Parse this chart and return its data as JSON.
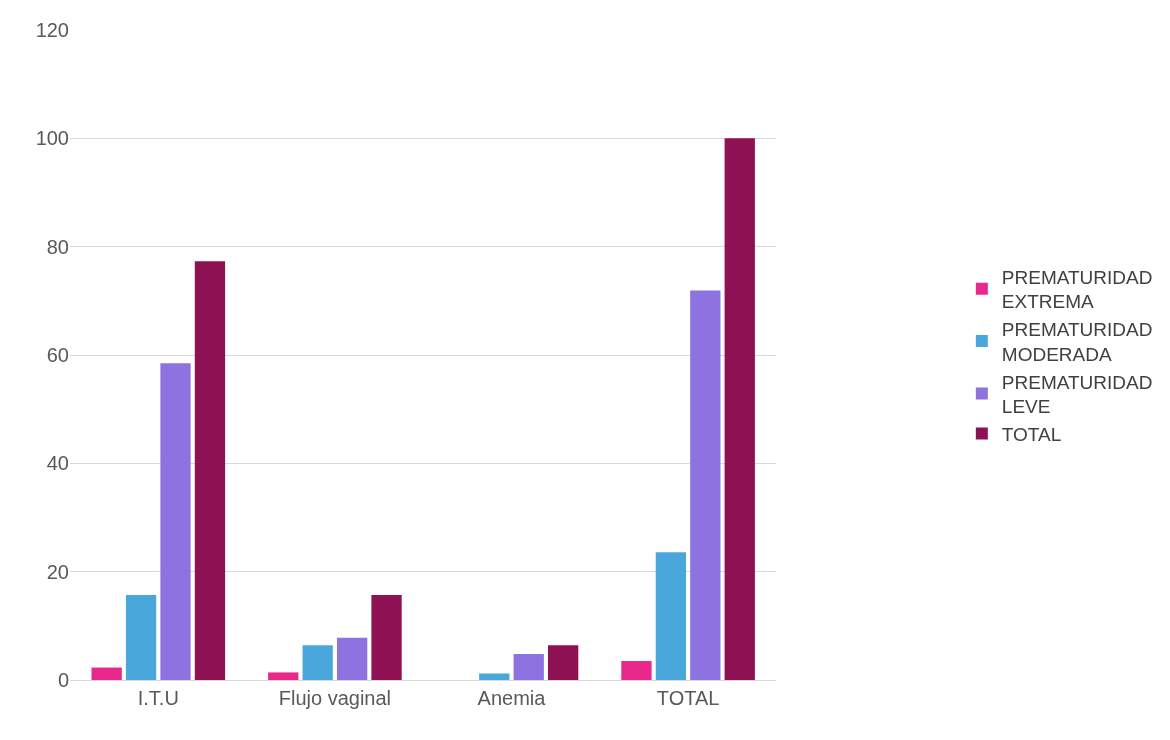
{
  "chart_data": {
    "type": "bar",
    "categories": [
      "I.T.U",
      "Flujo vaginal",
      "Anemia",
      "TOTAL"
    ],
    "series": [
      {
        "name": "PREMATURIDAD EXTREMA",
        "color": "#e8288a",
        "values": [
          2.3,
          1.4,
          0,
          3.5
        ]
      },
      {
        "name": "PREMATURIDAD MODERADA",
        "color": "#4aa7dc",
        "values": [
          15.7,
          6.4,
          1.2,
          23.6
        ]
      },
      {
        "name": "PREMATURIDAD LEVE",
        "color": "#8e72e0",
        "values": [
          58.5,
          7.8,
          4.8,
          71.9
        ]
      },
      {
        "name": "TOTAL",
        "color": "#8e1253",
        "values": [
          77.3,
          15.7,
          6.4,
          100
        ]
      }
    ],
    "ylim": [
      0,
      120
    ],
    "yticks": [
      0,
      20,
      40,
      60,
      80,
      100,
      120
    ],
    "grid": "y",
    "legend": "right"
  }
}
